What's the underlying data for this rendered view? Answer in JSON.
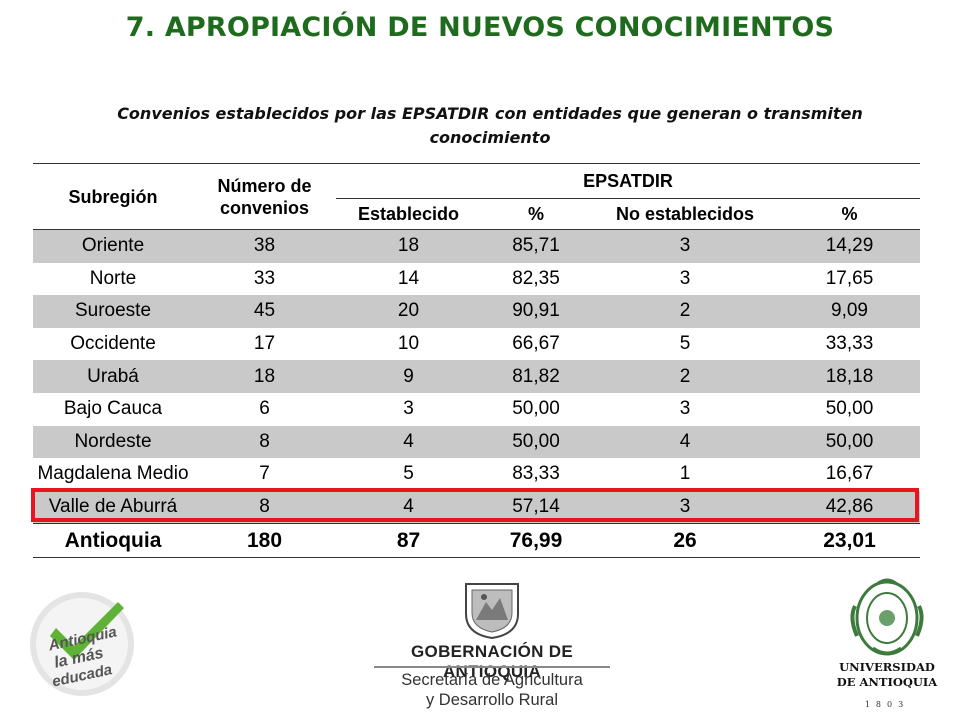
{
  "title": "7. APROPIACIÓN DE NUEVOS CONOCIMIENTOS",
  "subtitle": "Convenios establecidos por las EPSATDIR con entidades que generan o transmiten conocimiento",
  "table": {
    "headers": {
      "subregion": "Subregión",
      "convenios": "Número de convenios",
      "group": "EPSATDIR",
      "establecido": "Establecido",
      "pct1": "%",
      "no_establecidos": "No establecidos",
      "pct2": "%"
    },
    "rows": [
      [
        "Oriente",
        "38",
        "18",
        "85,71",
        "3",
        "14,29"
      ],
      [
        "Norte",
        "33",
        "14",
        "82,35",
        "3",
        "17,65"
      ],
      [
        "Suroeste",
        "45",
        "20",
        "90,91",
        "2",
        "9,09"
      ],
      [
        "Occidente",
        "17",
        "10",
        "66,67",
        "5",
        "33,33"
      ],
      [
        "Urabá",
        "18",
        "9",
        "81,82",
        "2",
        "18,18"
      ],
      [
        "Bajo Cauca",
        "6",
        "3",
        "50,00",
        "3",
        "50,00"
      ],
      [
        "Nordeste",
        "8",
        "4",
        "50,00",
        "4",
        "50,00"
      ],
      [
        "Magdalena Medio",
        "7",
        "5",
        "83,33",
        "1",
        "16,67"
      ],
      [
        "Valle de Aburrá",
        "8",
        "4",
        "57,14",
        "3",
        "42,86"
      ]
    ],
    "total": [
      "Antioquia",
      "180",
      "87",
      "76,99",
      "26",
      "23,01"
    ],
    "highlight_color": "#e8141e"
  },
  "logos": {
    "left_line1": "Antioquia",
    "left_line2": "la más",
    "left_line3": "educada",
    "gov_line1": "GOBERNACIÓN DE ANTIOQUIA",
    "gov_line2": "Secretaría de Agricultura",
    "gov_line3": "y Desarrollo Rural",
    "udea_line1": "UNIVERSIDAD",
    "udea_line2": "DE ANTIOQUIA",
    "udea_year": "1803"
  }
}
